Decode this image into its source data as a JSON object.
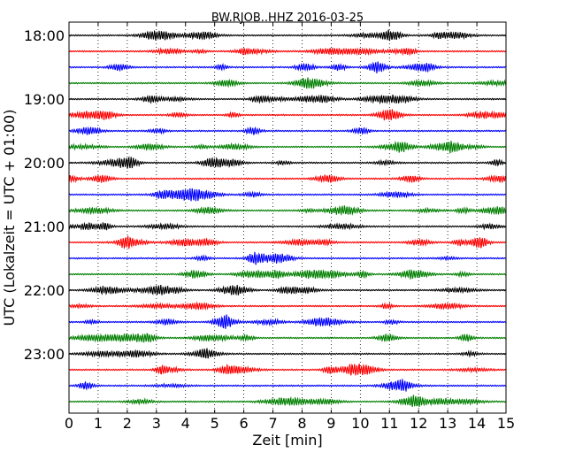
{
  "chart_data": {
    "type": "line",
    "title": "BW.RJOB..HHZ 2016-03-25",
    "xlabel": "Zeit  [min]",
    "ylabel": "UTC (Lokalzeit = UTC + 01:00)",
    "xlim": [
      0,
      15
    ],
    "xticks": [
      "0",
      "1",
      "2",
      "3",
      "4",
      "5",
      "6",
      "7",
      "8",
      "9",
      "10",
      "11",
      "12",
      "13",
      "14",
      "15"
    ],
    "ytick_labels": [
      "18:00",
      "19:00",
      "20:00",
      "21:00",
      "22:00",
      "23:00"
    ],
    "ytick_rows": [
      0,
      4,
      8,
      12,
      16,
      20
    ],
    "grid": "vertical dotted",
    "trace_colors": [
      "#000000",
      "#ff0000",
      "#0000ff",
      "#007f00"
    ],
    "traces": [
      "18:00",
      "18:15",
      "18:30",
      "18:45",
      "19:00",
      "19:15",
      "19:30",
      "19:45",
      "20:00",
      "20:15",
      "20:30",
      "20:45",
      "21:00",
      "21:15",
      "21:30",
      "21:45",
      "22:00",
      "22:15",
      "22:30",
      "22:45",
      "23:00",
      "23:15",
      "23:30",
      "23:45"
    ]
  }
}
